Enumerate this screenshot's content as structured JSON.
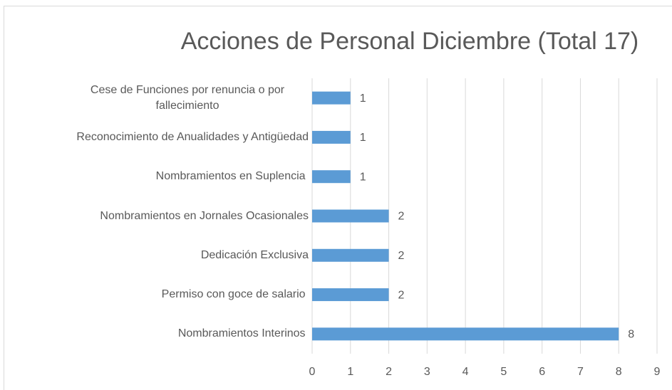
{
  "chart_data": {
    "type": "bar",
    "orientation": "horizontal",
    "title": "Acciones de Personal Diciembre (Total 17)",
    "categories": [
      "Cese de Funciones por renuncia o por fallecimiento",
      "Reconocimiento de Anualidades y Antigüedad",
      "Nombramientos en Suplencia ",
      "Nombramientos en Jornales Ocasionales",
      "Dedicación Exclusiva",
      "Permiso con goce de salario ",
      "Nombramientos Interinos "
    ],
    "values": [
      1,
      1,
      1,
      2,
      2,
      2,
      8
    ],
    "color": "#5b9bd5",
    "xlim": [
      0,
      9
    ],
    "xticks": [
      0,
      1,
      2,
      3,
      4,
      5,
      6,
      7,
      8,
      9
    ],
    "grid": true
  }
}
